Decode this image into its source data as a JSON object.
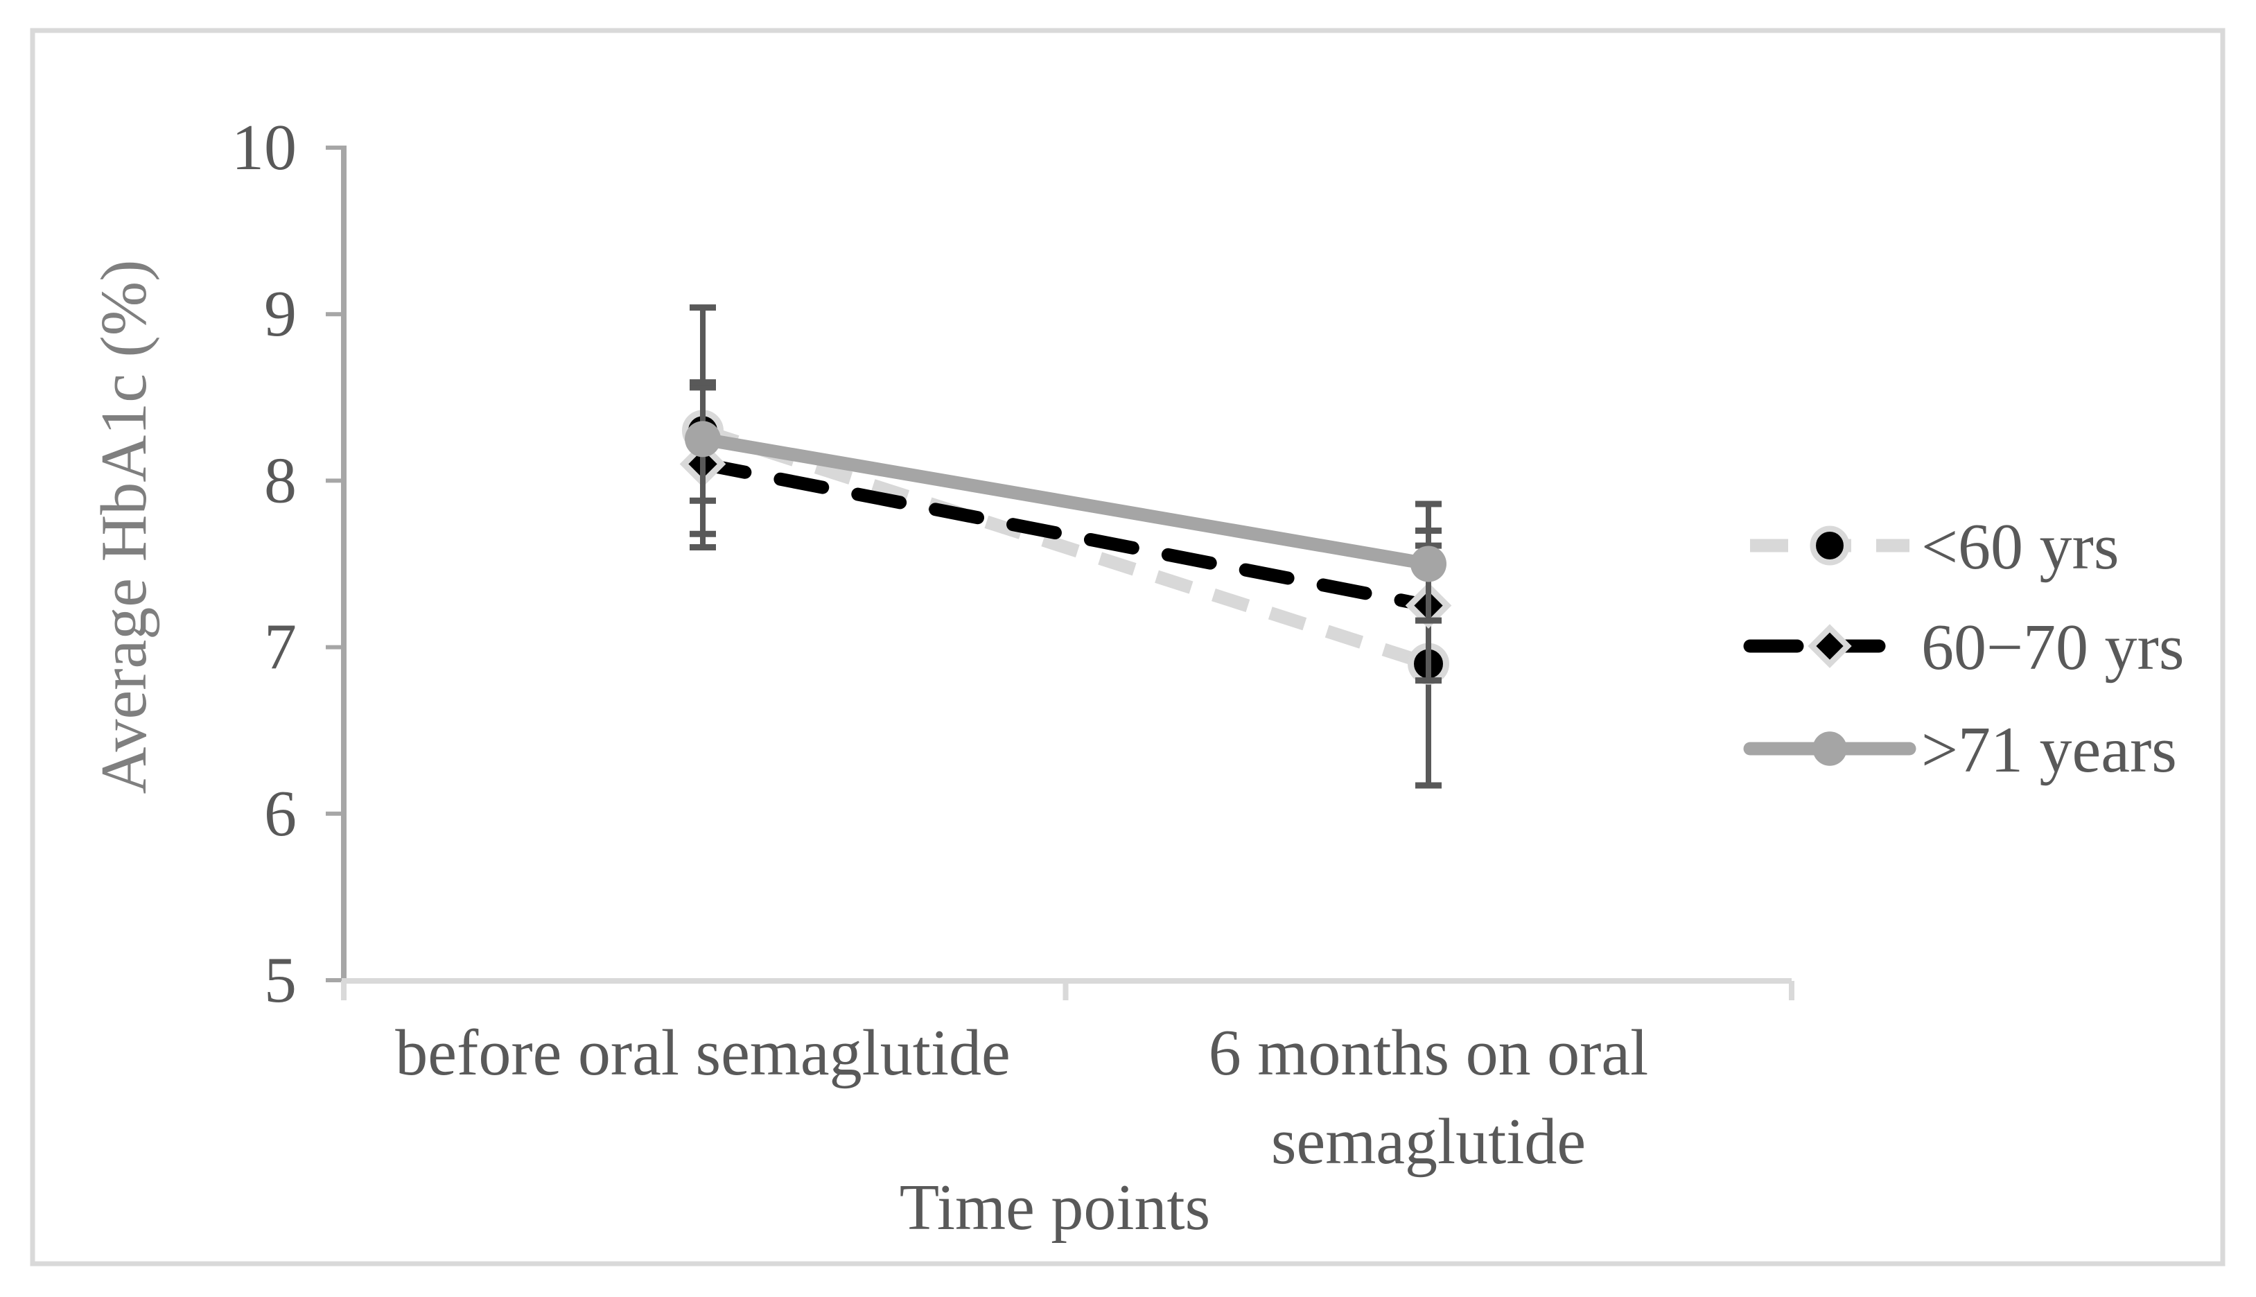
{
  "figure": {
    "background": "#ffffff",
    "border_color": "#d9d9d9"
  },
  "chart_data": {
    "type": "line",
    "title": "",
    "xlabel": "Time points",
    "ylabel": "Average HbA1c (%)",
    "ylim": [
      5,
      10
    ],
    "yticks": [
      5,
      6,
      7,
      8,
      9,
      10
    ],
    "grid": false,
    "legend_position": "right-outside",
    "categories": [
      "before oral semaglutide",
      "6 months on oral semaglutide"
    ],
    "categories_display_lines": [
      [
        "before oral semaglutide"
      ],
      [
        "6 months on oral",
        "semaglutide"
      ]
    ],
    "error_bar_color": "#595959",
    "axis_colors": {
      "y_axis": "#a6a6a6",
      "x_axis": "#d9d9d9"
    },
    "text_colors": {
      "tick_labels": "#595959",
      "category_labels": "#595959",
      "x_title": "#595959",
      "y_title": "#7f7f7f",
      "legend": "#595959"
    },
    "series": [
      {
        "name": "<60 yrs",
        "values": [
          8.3,
          6.9
        ],
        "error_low": [
          7.6,
          6.17
        ],
        "error_high": [
          9.04,
          7.61
        ],
        "line": {
          "color": "#d8d8d8",
          "style": "dashed"
        },
        "marker": {
          "shape": "circle",
          "fill": "#000000",
          "outline": "#d9d9d9"
        }
      },
      {
        "name": "60−70 yrs",
        "values": [
          8.1,
          7.25
        ],
        "error_low": [
          7.68,
          6.8
        ],
        "error_high": [
          8.56,
          7.7
        ],
        "line": {
          "color": "#000000",
          "style": "dashed"
        },
        "marker": {
          "shape": "diamond",
          "fill": "#000000",
          "outline": "#d9d9d9"
        }
      },
      {
        "name": ">71 years",
        "values": [
          8.25,
          7.5
        ],
        "error_low": [
          7.88,
          7.16
        ],
        "error_high": [
          8.59,
          7.86
        ],
        "line": {
          "color": "#a5a5a5",
          "style": "solid"
        },
        "marker": {
          "shape": "circle",
          "fill": "#a5a5a5",
          "outline": "none"
        }
      }
    ]
  }
}
